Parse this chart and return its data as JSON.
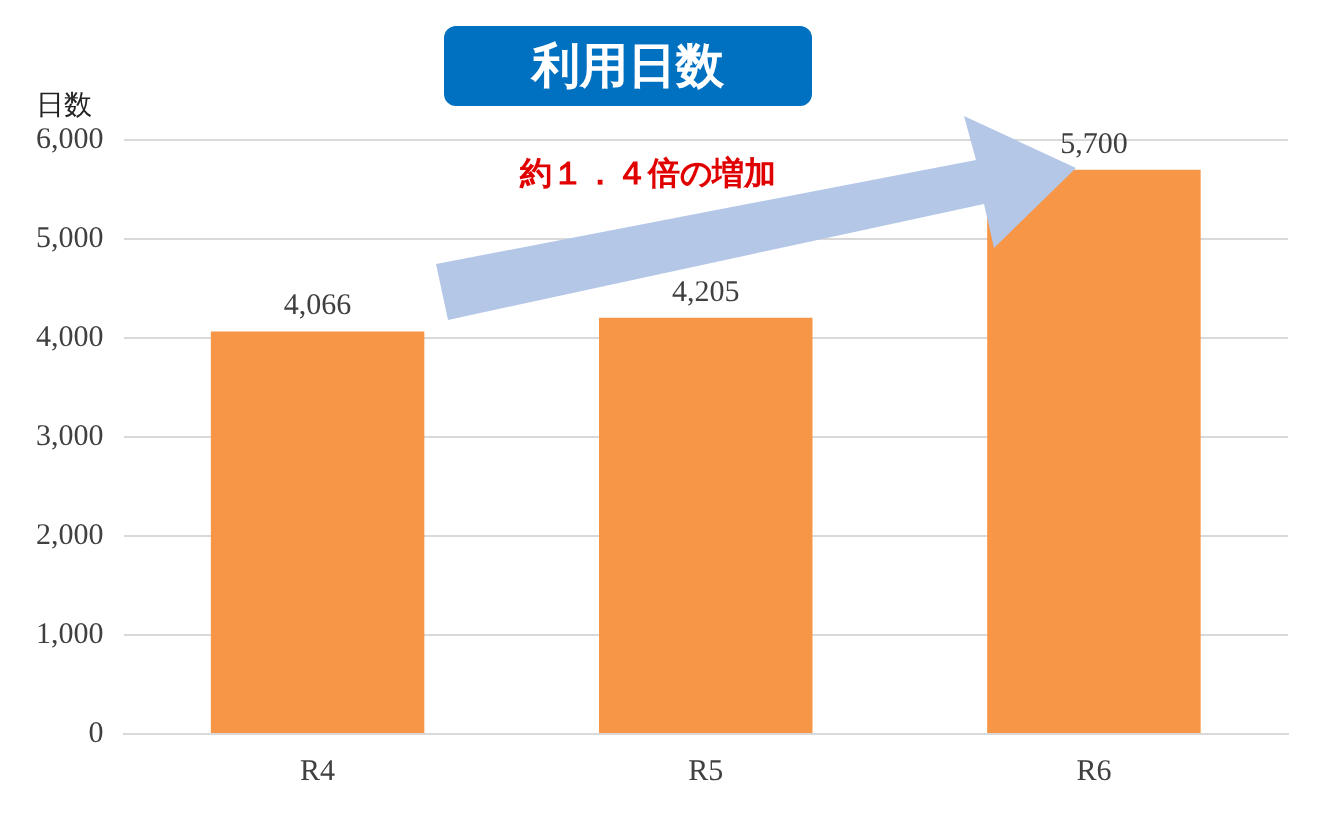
{
  "chart_data": {
    "type": "bar",
    "title": "利用日数",
    "ylabel": "日数",
    "categories": [
      "R4",
      "R5",
      "R6"
    ],
    "values": [
      4066,
      4205,
      5700
    ],
    "color": "#f79646",
    "value_labels": [
      "4,066",
      "4,205",
      "5,700"
    ],
    "ylim": [
      0,
      6000
    ],
    "yticks": [
      {
        "value": 0,
        "label": "0"
      },
      {
        "value": 1000,
        "label": "1,000"
      },
      {
        "value": 2000,
        "label": "2,000"
      },
      {
        "value": 3000,
        "label": "3,000"
      },
      {
        "value": 4000,
        "label": "4,000"
      },
      {
        "value": 5000,
        "label": "5,000"
      },
      {
        "value": 6000,
        "label": "6,000"
      }
    ],
    "grid": "y",
    "legend": false,
    "annotations": [
      "約１．４倍の増加"
    ]
  }
}
